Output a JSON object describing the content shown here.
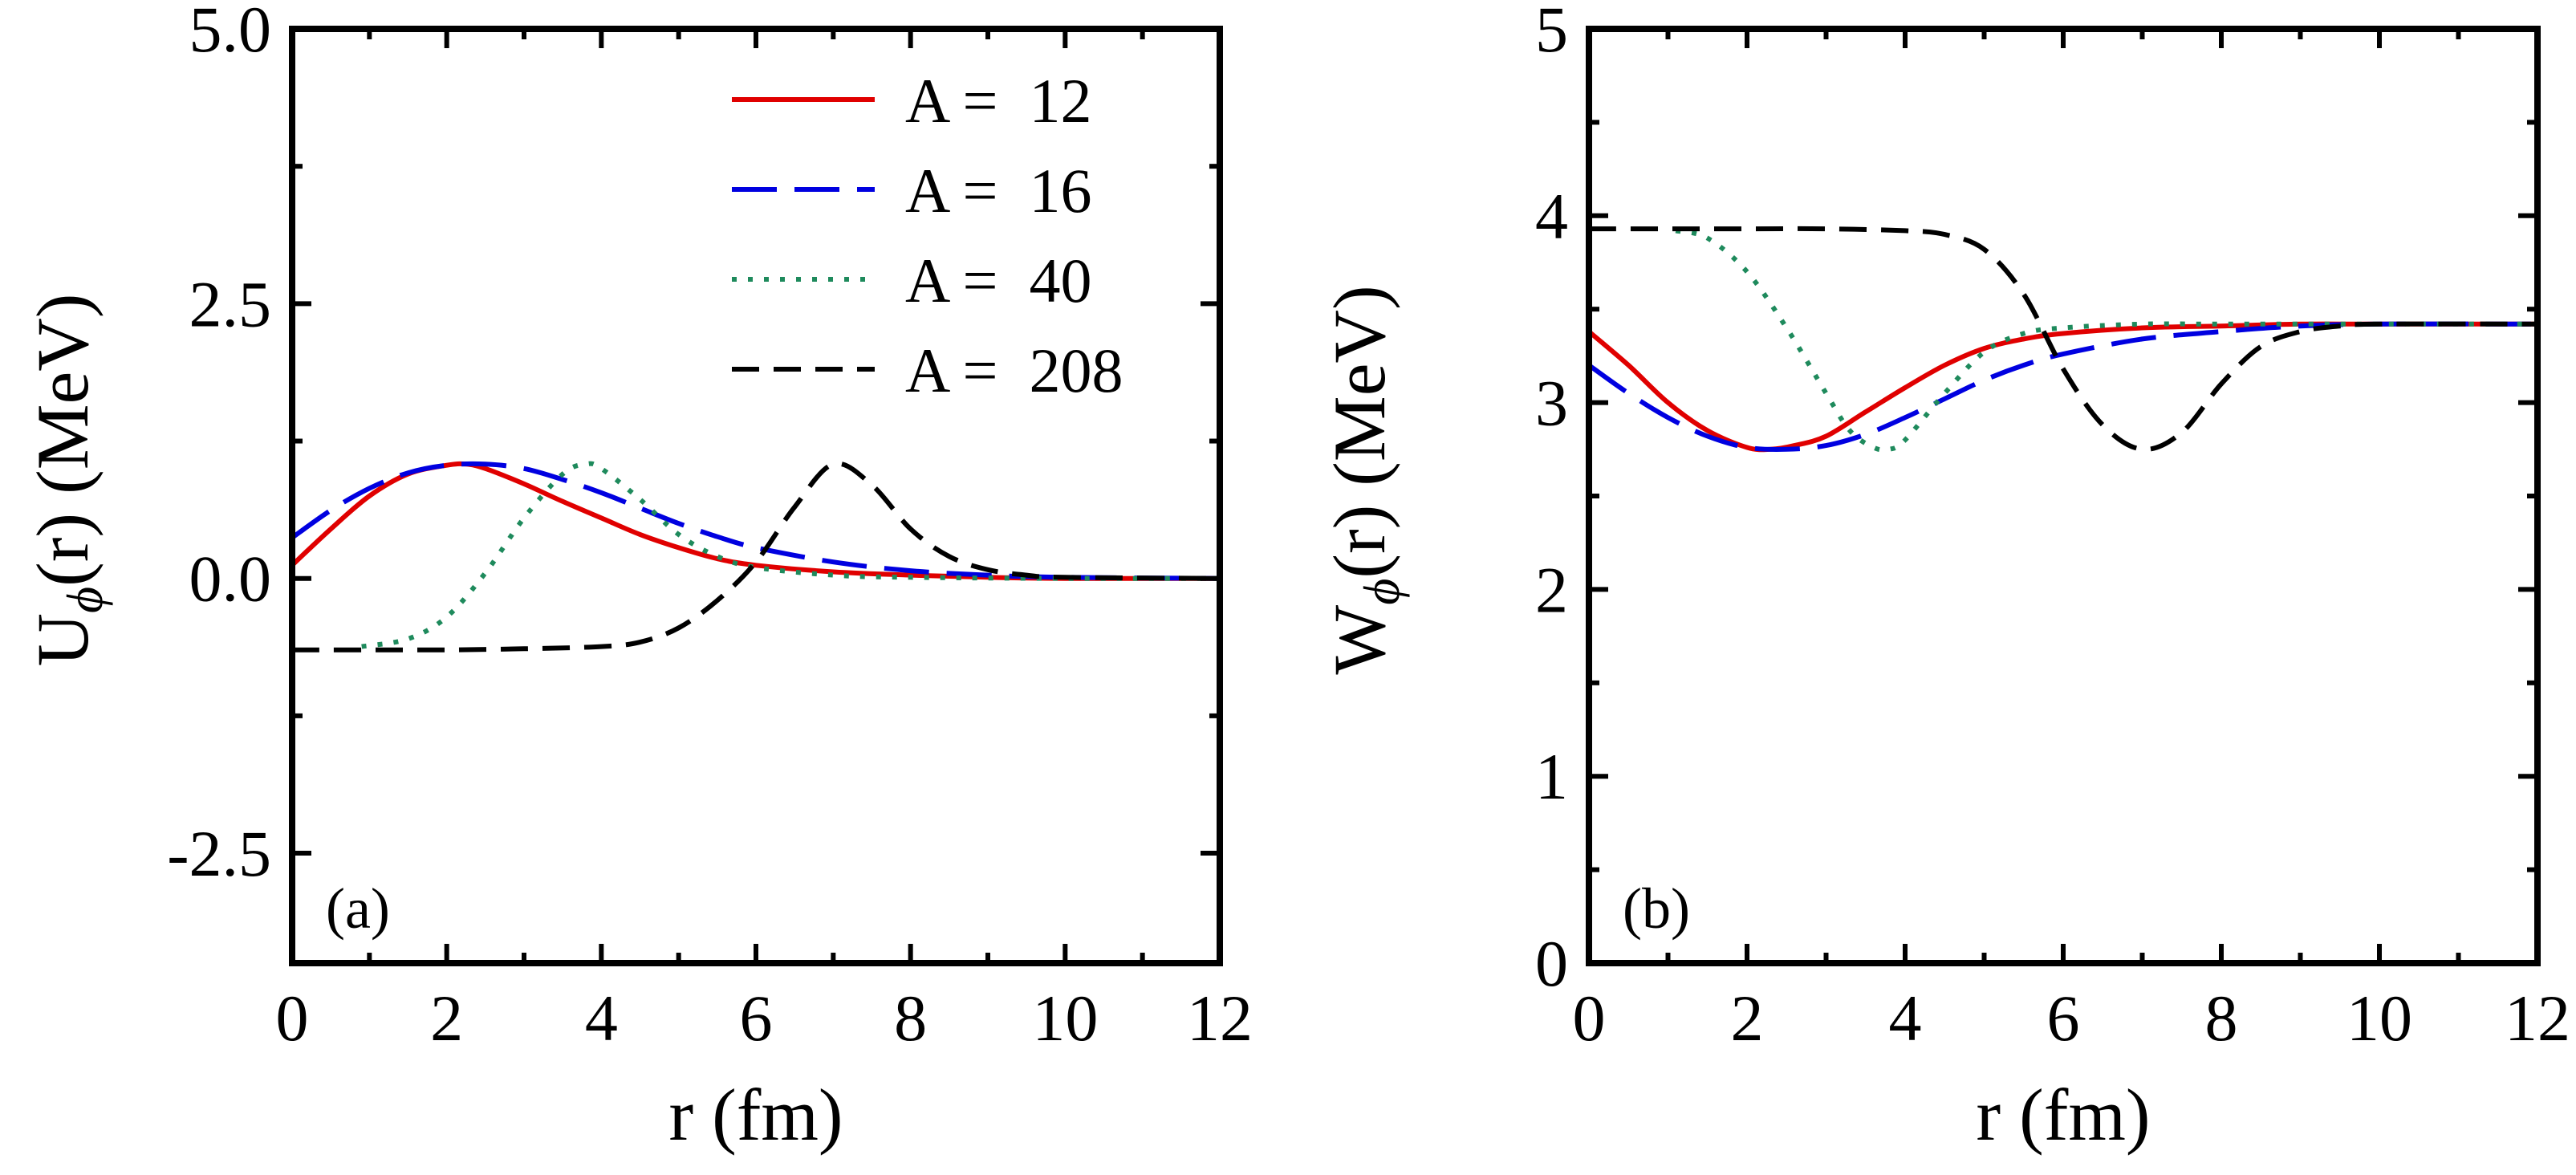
{
  "chart_data": [
    {
      "type": "line",
      "panel": "(a)",
      "xlabel": "r (fm)",
      "ylabel": {
        "main": "U",
        "sub": "ϕ",
        "rest": "(r) (MeV)"
      },
      "xlim": [
        0,
        12
      ],
      "ylim": [
        -3.5,
        5.0
      ],
      "xticks": [
        0,
        2,
        4,
        6,
        8,
        10,
        12
      ],
      "yticks": [
        -2.5,
        0.0,
        2.5,
        5.0
      ],
      "ytick_labels": [
        "-2.5",
        "0.0",
        "2.5",
        "5.0"
      ],
      "grid": false,
      "legend_position": "top-right",
      "series": [
        {
          "name": "A =  12",
          "color": "#e00000",
          "dash": "solid",
          "x": [
            0,
            0.5,
            1.0,
            1.5,
            2.0,
            2.25,
            2.5,
            3.0,
            3.5,
            4.0,
            4.5,
            5.0,
            5.5,
            6.0,
            7.0,
            8.0,
            9.0,
            10.0,
            12.0
          ],
          "y": [
            0.12,
            0.45,
            0.75,
            0.95,
            1.03,
            1.04,
            1.0,
            0.86,
            0.7,
            0.55,
            0.4,
            0.28,
            0.18,
            0.12,
            0.06,
            0.03,
            0.01,
            0.0,
            0.0
          ]
        },
        {
          "name": "A =  16",
          "color": "#0000e0",
          "dash": "long-dash",
          "x": [
            0,
            0.5,
            1.0,
            1.5,
            2.0,
            2.5,
            3.0,
            3.5,
            4.0,
            4.5,
            5.0,
            5.5,
            6.0,
            7.0,
            8.0,
            9.0,
            10.0,
            12.0
          ],
          "y": [
            0.37,
            0.62,
            0.82,
            0.96,
            1.03,
            1.04,
            1.0,
            0.9,
            0.78,
            0.64,
            0.5,
            0.38,
            0.28,
            0.15,
            0.07,
            0.03,
            0.01,
            0.0
          ]
        },
        {
          "name": "A =  40",
          "color": "#1e8a5c",
          "dash": "dotted",
          "x": [
            0.9,
            1.5,
            2.0,
            2.5,
            3.0,
            3.5,
            3.8,
            4.0,
            4.5,
            5.0,
            5.5,
            6.0,
            7.0,
            8.0,
            10.0,
            12.0
          ],
          "y": [
            -0.62,
            -0.55,
            -0.35,
            0.05,
            0.55,
            0.95,
            1.04,
            1.0,
            0.72,
            0.4,
            0.2,
            0.1,
            0.03,
            0.01,
            0.0,
            0.0
          ]
        },
        {
          "name": "A =  208",
          "color": "#000000",
          "dash": "dashed",
          "x": [
            0,
            1,
            2,
            3,
            4,
            4.5,
            5.0,
            5.5,
            6.0,
            6.5,
            7.0,
            7.5,
            8.0,
            8.5,
            9.0,
            9.5,
            10.0,
            12.0
          ],
          "y": [
            -0.65,
            -0.65,
            -0.65,
            -0.64,
            -0.62,
            -0.58,
            -0.45,
            -0.2,
            0.15,
            0.65,
            1.04,
            0.85,
            0.45,
            0.2,
            0.08,
            0.03,
            0.01,
            0.0
          ]
        }
      ]
    },
    {
      "type": "line",
      "panel": "(b)",
      "xlabel": "r (fm)",
      "ylabel": {
        "main": "W",
        "sub": "ϕ",
        "rest": "(r) (MeV)"
      },
      "xlim": [
        0,
        12
      ],
      "ylim": [
        0,
        5
      ],
      "xticks": [
        0,
        2,
        4,
        6,
        8,
        10,
        12
      ],
      "yticks": [
        0,
        1,
        2,
        3,
        4,
        5
      ],
      "ytick_labels": [
        "0",
        "1",
        "2",
        "3",
        "4",
        "5"
      ],
      "grid": false,
      "series": [
        {
          "name": "A =  12",
          "color": "#e00000",
          "dash": "solid",
          "x": [
            0,
            0.5,
            1.0,
            1.5,
            2.0,
            2.3,
            2.6,
            3.0,
            3.5,
            4.0,
            4.5,
            5.0,
            5.5,
            6.0,
            7.0,
            8.0,
            9.0,
            10.0,
            12.0
          ],
          "y": [
            3.38,
            3.2,
            3.0,
            2.85,
            2.76,
            2.75,
            2.77,
            2.82,
            2.95,
            3.08,
            3.2,
            3.29,
            3.34,
            3.37,
            3.4,
            3.41,
            3.42,
            3.42,
            3.42
          ]
        },
        {
          "name": "A =  16",
          "color": "#0000e0",
          "dash": "long-dash",
          "x": [
            0,
            0.5,
            1.0,
            1.5,
            2.0,
            2.5,
            3.0,
            3.5,
            4.0,
            4.5,
            5.0,
            5.5,
            6.0,
            7.0,
            8.0,
            9.0,
            10.0,
            12.0
          ],
          "y": [
            3.2,
            3.05,
            2.92,
            2.82,
            2.76,
            2.75,
            2.77,
            2.83,
            2.92,
            3.02,
            3.12,
            3.2,
            3.26,
            3.34,
            3.38,
            3.41,
            3.42,
            3.42
          ]
        },
        {
          "name": "A =  40",
          "color": "#1e8a5c",
          "dash": "dotted",
          "x": [
            1.1,
            1.5,
            2.0,
            2.5,
            3.0,
            3.3,
            3.6,
            3.8,
            4.0,
            4.5,
            5.0,
            5.5,
            6.0,
            7.0,
            8.0,
            10.0,
            12.0
          ],
          "y": [
            3.92,
            3.88,
            3.7,
            3.4,
            3.05,
            2.85,
            2.76,
            2.75,
            2.8,
            3.05,
            3.27,
            3.37,
            3.4,
            3.42,
            3.42,
            3.42,
            3.42
          ]
        },
        {
          "name": "A =  208",
          "color": "#000000",
          "dash": "dashed",
          "x": [
            0,
            1,
            2,
            3,
            4,
            4.5,
            5.0,
            5.5,
            6.0,
            6.5,
            7.0,
            7.5,
            8.0,
            8.5,
            9.0,
            9.5,
            10.0,
            12.0
          ],
          "y": [
            3.93,
            3.93,
            3.93,
            3.93,
            3.92,
            3.9,
            3.82,
            3.58,
            3.18,
            2.88,
            2.75,
            2.84,
            3.1,
            3.3,
            3.38,
            3.41,
            3.42,
            3.42
          ]
        }
      ]
    }
  ]
}
